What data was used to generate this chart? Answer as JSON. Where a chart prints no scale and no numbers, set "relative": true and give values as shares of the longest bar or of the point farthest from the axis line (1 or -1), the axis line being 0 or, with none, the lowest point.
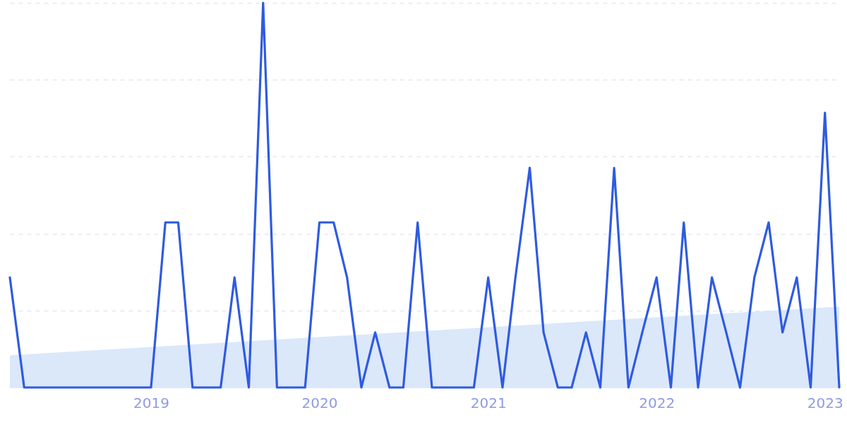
{
  "chart_data": {
    "type": "line",
    "relative": true,
    "x": [
      "2018-03",
      "2018-04",
      "2018-05",
      "2018-06",
      "2018-07",
      "2018-08",
      "2018-09",
      "2018-10",
      "2018-11",
      "2018-12",
      "2019-01",
      "2019-02",
      "2019-03",
      "2019-04",
      "2019-05",
      "2019-06",
      "2019-07",
      "2019-08",
      "2019-09",
      "2019-10",
      "2019-11",
      "2019-12",
      "2020-01",
      "2020-02",
      "2020-03",
      "2020-04",
      "2020-05",
      "2020-06",
      "2020-07",
      "2020-08",
      "2020-09",
      "2020-10",
      "2020-11",
      "2020-12",
      "2021-01",
      "2021-02",
      "2021-03",
      "2021-04",
      "2021-05",
      "2021-06",
      "2021-07",
      "2021-08",
      "2021-09",
      "2021-10",
      "2021-11",
      "2021-12",
      "2022-01",
      "2022-02",
      "2022-03",
      "2022-04",
      "2022-05",
      "2022-06",
      "2022-07",
      "2022-08",
      "2022-09",
      "2022-10",
      "2022-11",
      "2022-12",
      "2023-01",
      "2023-02"
    ],
    "series": [
      {
        "type": "area",
        "color": "#dbe8fa",
        "x": [
          "2018-03",
          "2023-02"
        ],
        "values": [
          0.084,
          0.21
        ]
      },
      {
        "type": "line",
        "color": "#2f5be0",
        "values": [
          0.286,
          0,
          0,
          0,
          0,
          0,
          0,
          0,
          0,
          0,
          0,
          0.429,
          0.429,
          0,
          0,
          0,
          0.286,
          0,
          1,
          0,
          0,
          0,
          0.429,
          0.429,
          0.286,
          0,
          0.143,
          0,
          0,
          0.429,
          0,
          0,
          0,
          0,
          0.286,
          0,
          0.286,
          0.571,
          0.143,
          0,
          0,
          0.143,
          0,
          0.571,
          0,
          0.143,
          0.286,
          0,
          0.429,
          0,
          0.286,
          0.143,
          0,
          0.286,
          0.429,
          0.143,
          0.286,
          0,
          0.714,
          0
        ]
      }
    ],
    "xlim": [
      "2018-03",
      "2023-02"
    ],
    "xticks": [
      "2019",
      "2020",
      "2021",
      "2022",
      "2023"
    ],
    "grid": "y",
    "tick_labels": "x",
    "line_style": "solid"
  }
}
